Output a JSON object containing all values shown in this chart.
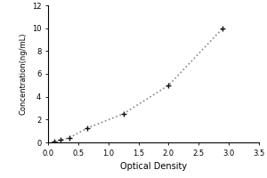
{
  "x": [
    0.1,
    0.2,
    0.35,
    0.65,
    1.25,
    2.0,
    2.9
  ],
  "y": [
    0.1,
    0.2,
    0.4,
    1.25,
    2.5,
    5.0,
    10.0
  ],
  "xlabel": "Optical Density",
  "ylabel": "Concentration(ng/mL)",
  "xlim": [
    0,
    3.5
  ],
  "ylim": [
    0,
    12
  ],
  "xticks": [
    0,
    0.5,
    1,
    1.5,
    2,
    2.5,
    3,
    3.5
  ],
  "yticks": [
    0,
    2,
    4,
    6,
    8,
    10,
    12
  ],
  "line_color": "#888888",
  "marker": "+",
  "marker_color": "#111111",
  "marker_size": 5,
  "marker_linewidth": 1.0,
  "linestyle": "dotted",
  "linewidth": 1.2,
  "background_color": "#ffffff",
  "xlabel_fontsize": 7,
  "ylabel_fontsize": 6,
  "tick_fontsize": 6
}
